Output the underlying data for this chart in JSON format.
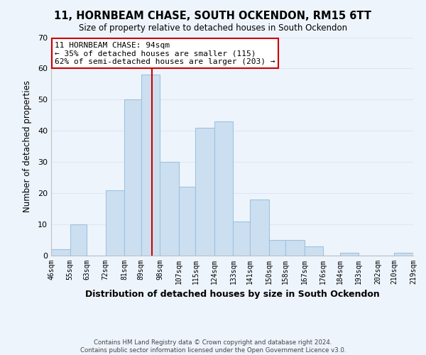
{
  "title_line1": "11, HORNBEAM CHASE, SOUTH OCKENDON, RM15 6TT",
  "title_line2": "Size of property relative to detached houses in South Ockendon",
  "bar_edges": [
    46,
    55,
    63,
    72,
    81,
    89,
    98,
    107,
    115,
    124,
    133,
    141,
    150,
    158,
    167,
    176,
    184,
    193,
    202,
    210,
    219
  ],
  "bar_heights": [
    2,
    10,
    0,
    21,
    50,
    58,
    30,
    22,
    41,
    43,
    11,
    18,
    5,
    5,
    3,
    0,
    1,
    0,
    0,
    1
  ],
  "bar_color": "#ccdff0",
  "bar_edgecolor": "#9dc3e0",
  "property_line_x": 94,
  "property_line_color": "#cc0000",
  "annotation_line1": "11 HORNBEAM CHASE: 94sqm",
  "annotation_line2": "← 35% of detached houses are smaller (115)",
  "annotation_line3": "62% of semi-detached houses are larger (203) →",
  "annotation_box_edgecolor": "#cc0000",
  "annotation_box_facecolor": "#ffffff",
  "xlabel": "Distribution of detached houses by size in South Ockendon",
  "ylabel": "Number of detached properties",
  "ylim": [
    0,
    70
  ],
  "yticks": [
    0,
    10,
    20,
    30,
    40,
    50,
    60,
    70
  ],
  "tick_labels": [
    "46sqm",
    "55sqm",
    "63sqm",
    "72sqm",
    "81sqm",
    "89sqm",
    "98sqm",
    "107sqm",
    "115sqm",
    "124sqm",
    "133sqm",
    "141sqm",
    "150sqm",
    "158sqm",
    "167sqm",
    "176sqm",
    "184sqm",
    "193sqm",
    "202sqm",
    "210sqm",
    "219sqm"
  ],
  "footer_text": "Contains HM Land Registry data © Crown copyright and database right 2024.\nContains public sector information licensed under the Open Government Licence v3.0.",
  "grid_color": "#dce8f5",
  "background_color": "#eef4fc"
}
